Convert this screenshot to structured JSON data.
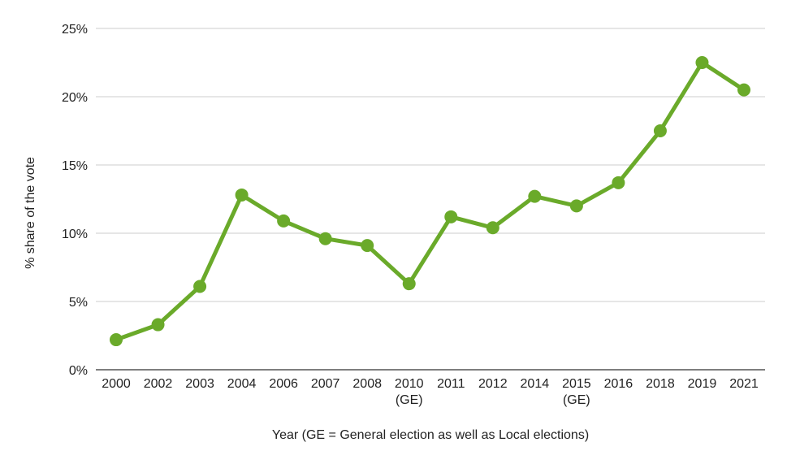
{
  "chart_data": {
    "type": "line",
    "title": "",
    "xlabel": "Year (GE = General election as well as Local elections)",
    "ylabel": "% share of the vote",
    "ylim": [
      0,
      25
    ],
    "yticks": [
      0,
      5,
      10,
      15,
      20,
      25
    ],
    "ytick_labels": [
      "0%",
      "5%",
      "10%",
      "15%",
      "20%",
      "25%"
    ],
    "grid": true,
    "legend": "none",
    "categories": [
      {
        "year": "2000",
        "note": ""
      },
      {
        "year": "2002",
        "note": ""
      },
      {
        "year": "2003",
        "note": ""
      },
      {
        "year": "2004",
        "note": ""
      },
      {
        "year": "2006",
        "note": ""
      },
      {
        "year": "2007",
        "note": ""
      },
      {
        "year": "2008",
        "note": ""
      },
      {
        "year": "2010",
        "note": "(GE)"
      },
      {
        "year": "2011",
        "note": ""
      },
      {
        "year": "2012",
        "note": ""
      },
      {
        "year": "2014",
        "note": ""
      },
      {
        "year": "2015",
        "note": "(GE)"
      },
      {
        "year": "2016",
        "note": ""
      },
      {
        "year": "2018",
        "note": ""
      },
      {
        "year": "2019",
        "note": ""
      },
      {
        "year": "2021",
        "note": ""
      }
    ],
    "series": [
      {
        "name": "% share of the vote",
        "color": "#6aaa2a",
        "values": [
          2.2,
          3.3,
          6.1,
          12.8,
          10.9,
          9.6,
          9.1,
          6.3,
          11.2,
          10.4,
          12.7,
          12.0,
          13.7,
          17.5,
          22.5,
          20.5
        ]
      }
    ]
  }
}
